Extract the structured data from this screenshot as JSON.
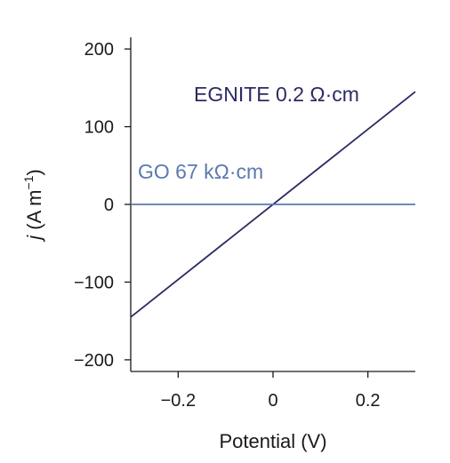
{
  "chart_data": {
    "type": "line",
    "title": "",
    "xlabel": "Potential (V)",
    "ylabel_italic": "j",
    "ylabel_rest": " (A m",
    "ylabel_sup": "−1",
    "ylabel_close": ")",
    "xlim": [
      -0.3,
      0.3
    ],
    "ylim": [
      -215,
      215
    ],
    "xticks": [
      -0.2,
      0,
      0.2
    ],
    "xtick_labels": [
      "−0.2",
      "0",
      "0.2"
    ],
    "yticks": [
      -200,
      -100,
      0,
      100,
      200
    ],
    "ytick_labels": [
      "−200",
      "−100",
      "0",
      "100",
      "200"
    ],
    "grid": false,
    "series": [
      {
        "name": "EGNITE 0.2 Ω·cm",
        "color": "#2b2b63",
        "x": [
          -0.3,
          0.3
        ],
        "y": [
          -145,
          145
        ]
      },
      {
        "name": "GO 67 kΩ·cm",
        "color": "#5a7ab0",
        "x": [
          -0.3,
          0.3
        ],
        "y": [
          0,
          0
        ]
      }
    ]
  }
}
